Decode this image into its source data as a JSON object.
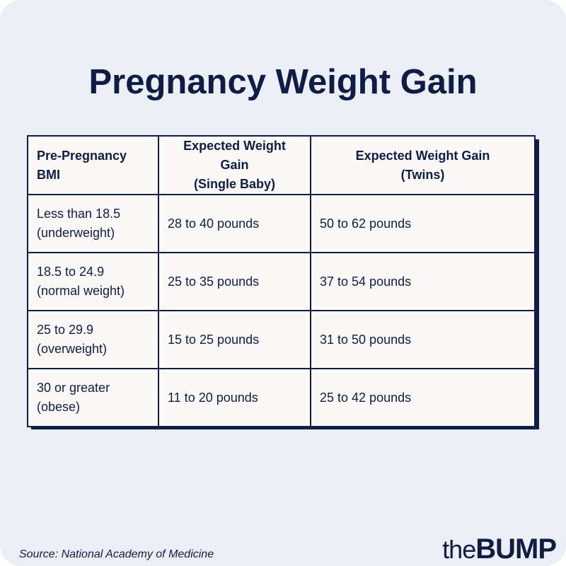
{
  "title": "Pregnancy Weight Gain",
  "table": {
    "headers": [
      [
        "Pre-Pregnancy BMI"
      ],
      [
        "Expected Weight Gain",
        "(Single Baby)"
      ],
      [
        "Expected Weight Gain",
        "(Twins)"
      ]
    ],
    "rows": [
      {
        "bmi": [
          "Less than 18.5",
          "(underweight)"
        ],
        "single": "28 to 40 pounds",
        "twins": "50 to 62 pounds"
      },
      {
        "bmi": [
          "18.5 to 24.9",
          "(normal weight)"
        ],
        "single": "25 to 35 pounds",
        "twins": "37 to 54 pounds"
      },
      {
        "bmi": [
          "25 to 29.9",
          "(overweight)"
        ],
        "single": "15 to 25 pounds",
        "twins": "31 to 50 pounds"
      },
      {
        "bmi": [
          "30 or greater",
          "(obese)"
        ],
        "single": "11 to 20 pounds",
        "twins": "25 to 42 pounds"
      }
    ]
  },
  "source": "Source: National Academy of Medicine",
  "logo": {
    "prefix": "the",
    "name": "BUMP"
  },
  "colors": {
    "navy": "#0f1d45",
    "background": "#eceef5",
    "cell": "#fbf9f8"
  }
}
